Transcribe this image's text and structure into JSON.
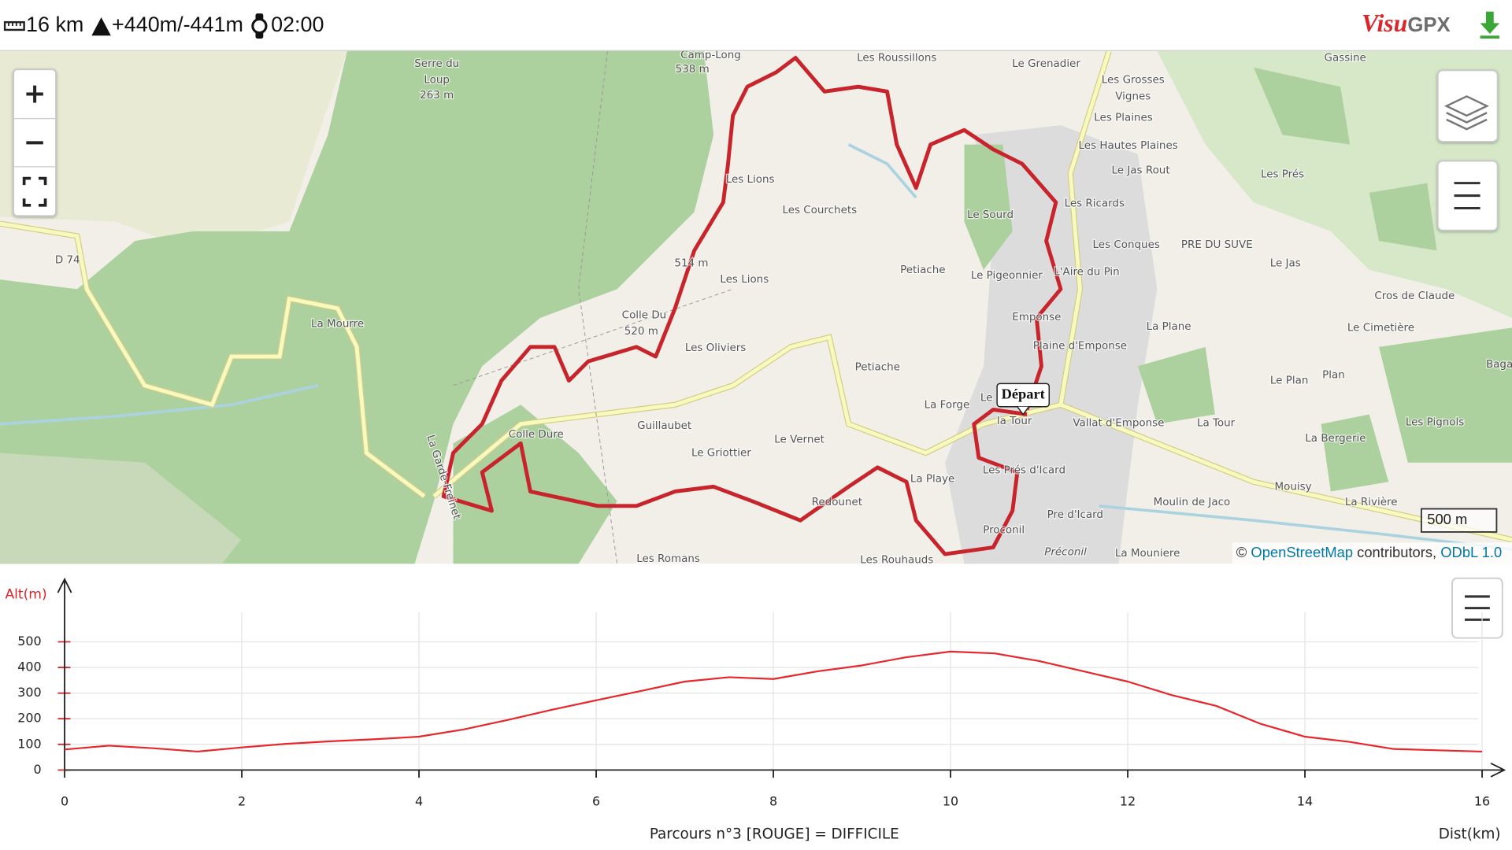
{
  "header": {
    "distance": "16 km",
    "elevation": "+440m/-441m",
    "duration": "02:00",
    "logo": [
      "Visu",
      "GPX"
    ]
  },
  "map": {
    "zoom_in": "+",
    "zoom_out": "−",
    "start_label": "Départ",
    "scale": "500 m",
    "attribution": [
      "©",
      "OpenStreetMap",
      "contributors,",
      "ODbL 1.0"
    ],
    "labels": [
      "Camp-Long",
      "538 m",
      "Serre du",
      "Loup",
      "263 m",
      "Les Roussillons",
      "Le Grenadier",
      "Gassine",
      "Les Grosses",
      "Vignes",
      "Les Plaines",
      "Les Hautes Plaines",
      "Le Jas Rout",
      "Les Prés",
      "Les Lions",
      "Les Courchets",
      "Le Sourd",
      "Les Ricards",
      "D 74",
      "Les Conques",
      "PRE DU SUVE",
      "Le Jas",
      "514 m",
      "Petiache",
      "Le Pigeonnier",
      "L'Aire du Pin",
      "Les Lions",
      "Cros de Claude",
      "Colle Du",
      "520 m",
      "La Mourre",
      "Emponse",
      "La Plane",
      "Le Cimetière",
      "Plaine d'Emponse",
      "Les Oliviers",
      "Petiache",
      "Le Plan",
      "Plan",
      "Baga",
      "La Forge",
      "Vallat d'Emponse",
      "La Tour",
      "Les Pignols",
      "Guillaubet",
      "Colle Dure",
      "Le Vernet",
      "La Bergerie",
      "Le Griottier",
      "La Playe",
      "Les Prés d'Icard",
      "Mouisy",
      "Redounet",
      "Moulin de Jaco",
      "La Rivière",
      "Pre d'Icard",
      "Proconil",
      "La Mouniere",
      "Les Romans",
      "Les Rouhauds",
      "Préconil",
      "La Garde-Freinet",
      "Le",
      "la Tour"
    ]
  },
  "chart_data": {
    "type": "line",
    "title": "Parcours n°3 [ROUGE] = DIFFICILE",
    "x_axis_label": "Dist(km)",
    "y_axis_label": "Alt(m)",
    "x": [
      0,
      0.5,
      1,
      1.5,
      2,
      2.5,
      3,
      3.5,
      4,
      4.5,
      5,
      5.5,
      6,
      6.5,
      7,
      7.5,
      8,
      8.5,
      9,
      9.5,
      10,
      10.5,
      11,
      11.5,
      12,
      12.5,
      13,
      13.5,
      14,
      14.5,
      15,
      15.5,
      16
    ],
    "values": [
      80,
      95,
      85,
      72,
      88,
      102,
      112,
      120,
      130,
      158,
      195,
      235,
      272,
      308,
      345,
      362,
      355,
      385,
      408,
      440,
      462,
      455,
      425,
      385,
      345,
      292,
      250,
      180,
      130,
      110,
      82,
      77,
      72
    ],
    "color": "#e8262b",
    "xlim": [
      0,
      16
    ],
    "ylim": [
      0,
      600
    ],
    "xticks": [
      0,
      2,
      4,
      6,
      8,
      10,
      12,
      14,
      16
    ],
    "yticks": [
      0,
      100,
      200,
      300,
      400,
      500
    ],
    "grid": true
  }
}
